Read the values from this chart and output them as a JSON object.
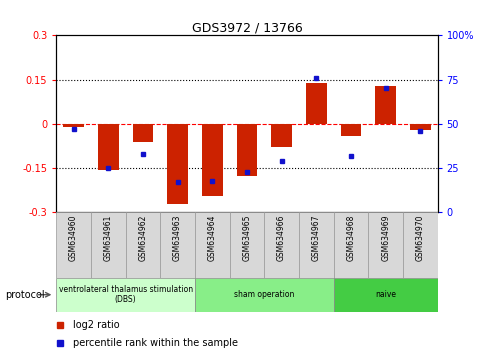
{
  "title": "GDS3972 / 13766",
  "samples": [
    "GSM634960",
    "GSM634961",
    "GSM634962",
    "GSM634963",
    "GSM634964",
    "GSM634965",
    "GSM634966",
    "GSM634967",
    "GSM634968",
    "GSM634969",
    "GSM634970"
  ],
  "log2_ratio": [
    -0.01,
    -0.155,
    -0.06,
    -0.27,
    -0.245,
    -0.175,
    -0.08,
    0.14,
    -0.04,
    0.13,
    -0.02
  ],
  "percentile_rank": [
    47,
    25,
    33,
    17,
    18,
    23,
    29,
    76,
    32,
    70,
    46
  ],
  "proto_groups": [
    {
      "indices": [
        0,
        1,
        2,
        3
      ],
      "label": "ventrolateral thalamus stimulation\n(DBS)",
      "color": "#ccffcc"
    },
    {
      "indices": [
        4,
        5,
        6,
        7
      ],
      "label": "sham operation",
      "color": "#88ee88"
    },
    {
      "indices": [
        8,
        9,
        10
      ],
      "label": "naive",
      "color": "#44cc44"
    }
  ],
  "ylim_left": [
    -0.3,
    0.3
  ],
  "ylim_right": [
    0,
    100
  ],
  "yticks_left": [
    -0.3,
    -0.15,
    0,
    0.15,
    0.3
  ],
  "yticks_right": [
    0,
    25,
    50,
    75,
    100
  ],
  "bar_color": "#cc2200",
  "dot_color": "#1111cc",
  "legend_bar_label": "log2 ratio",
  "legend_dot_label": "percentile rank within the sample",
  "bar_width": 0.6
}
